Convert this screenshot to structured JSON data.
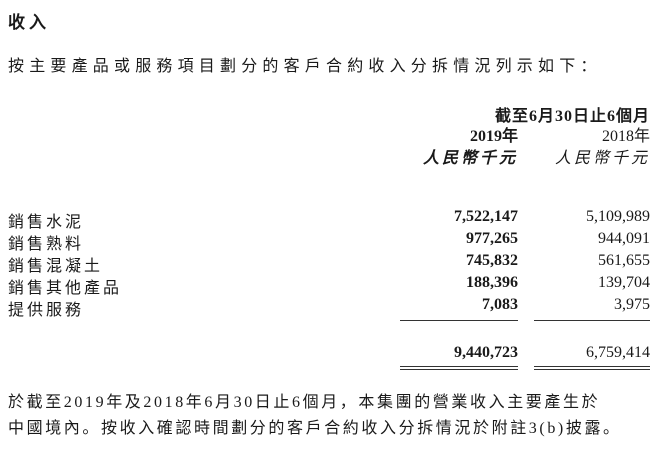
{
  "title": "收入",
  "intro": "按主要產品或服務項目劃分的客戶合約收入分拆情況列示如下：",
  "table": {
    "period_header": "截至6月30日止6個月",
    "columns": [
      {
        "year": "2019年",
        "unit": "人民幣千元"
      },
      {
        "year": "2018年",
        "unit": "人民幣千元"
      }
    ],
    "rows": [
      {
        "label": "銷售水泥",
        "v2019": "7,522,147",
        "v2018": "5,109,989"
      },
      {
        "label": "銷售熟料",
        "v2019": "977,265",
        "v2018": "944,091"
      },
      {
        "label": "銷售混凝土",
        "v2019": "745,832",
        "v2018": "561,655"
      },
      {
        "label": "銷售其他產品",
        "v2019": "188,396",
        "v2018": "139,704"
      },
      {
        "label": "提供服務",
        "v2019": "7,083",
        "v2018": "3,975"
      }
    ],
    "total": {
      "v2019": "9,440,723",
      "v2018": "6,759,414"
    }
  },
  "footnote": [
    "於截至2019年及2018年6月30日止6個月，本集團的營業收入主要產生於",
    "中國境內。按收入確認時間劃分的客戶合約收入分拆情況於附註3(b)披露。"
  ]
}
